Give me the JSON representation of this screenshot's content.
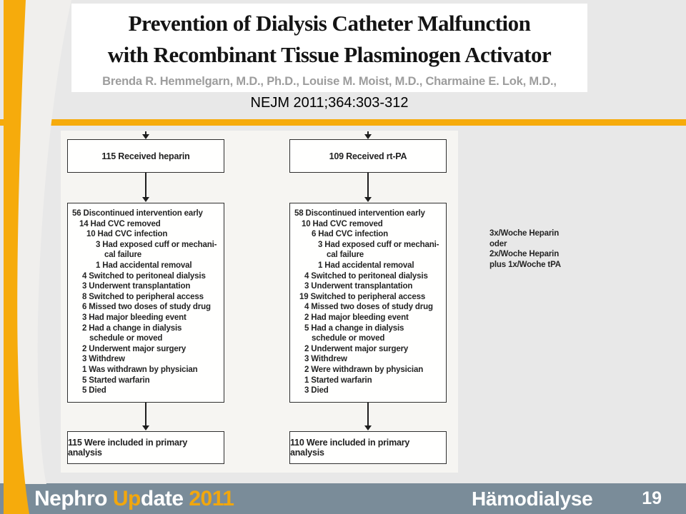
{
  "header": {
    "title_line1": "Prevention of Dialysis Catheter Malfunction",
    "title_line2": "with Recombinant Tissue Plasminogen Activator",
    "authors": "Brenda R. Hemmelgarn, M.D., Ph.D., Louise M. Moist, M.D., Charmaine E. Lok, M.D.,",
    "citation": "NEJM 2011;364:303-312"
  },
  "flowchart": {
    "left_arm": {
      "top_box": "115 Received heparin",
      "detail_box": [
        {
          "text": "56 Discontinued intervention early",
          "indent": 0
        },
        {
          "text": "14 Had CVC removed",
          "indent": 10
        },
        {
          "text": "10 Had CVC infection",
          "indent": 20
        },
        {
          "text": "3 Had exposed cuff or mechani-",
          "indent": 33
        },
        {
          "text": "cal failure",
          "indent": 45
        },
        {
          "text": "1 Had accidental removal",
          "indent": 33
        },
        {
          "text": "4 Switched to peritoneal dialysis",
          "indent": 14
        },
        {
          "text": "3 Underwent transplantation",
          "indent": 14
        },
        {
          "text": "8 Switched to peripheral access",
          "indent": 14
        },
        {
          "text": "6 Missed two doses of study drug",
          "indent": 14
        },
        {
          "text": "3 Had major bleeding event",
          "indent": 14
        },
        {
          "text": "2 Had a change in dialysis",
          "indent": 14
        },
        {
          "text": "schedule or moved",
          "indent": 24
        },
        {
          "text": "2 Underwent major surgery",
          "indent": 14
        },
        {
          "text": "3 Withdrew",
          "indent": 14
        },
        {
          "text": "1 Was withdrawn by physician",
          "indent": 14
        },
        {
          "text": "5 Started warfarin",
          "indent": 14
        },
        {
          "text": "5 Died",
          "indent": 14
        }
      ],
      "bottom_box": "115 Were included in primary analysis"
    },
    "right_arm": {
      "top_box": "109 Received rt-PA",
      "detail_box": [
        {
          "text": "58 Discontinued intervention early",
          "indent": 0
        },
        {
          "text": "10 Had CVC removed",
          "indent": 10
        },
        {
          "text": "6 Had CVC infection",
          "indent": 24
        },
        {
          "text": "3 Had exposed cuff or mechani-",
          "indent": 33
        },
        {
          "text": "cal failure",
          "indent": 45
        },
        {
          "text": "1 Had accidental removal",
          "indent": 33
        },
        {
          "text": "4 Switched to peritoneal dialysis",
          "indent": 14
        },
        {
          "text": "3 Underwent transplantation",
          "indent": 14
        },
        {
          "text": "19 Switched to peripheral access",
          "indent": 7
        },
        {
          "text": "4 Missed two doses of study drug",
          "indent": 14
        },
        {
          "text": "2 Had major bleeding event",
          "indent": 14
        },
        {
          "text": "5 Had a change in dialysis",
          "indent": 14
        },
        {
          "text": "schedule or moved",
          "indent": 24
        },
        {
          "text": "2 Underwent major surgery",
          "indent": 14
        },
        {
          "text": "3 Withdrew",
          "indent": 14
        },
        {
          "text": "2 Were withdrawn by physician",
          "indent": 14
        },
        {
          "text": "1 Started warfarin",
          "indent": 14
        },
        {
          "text": "3 Died",
          "indent": 14
        }
      ],
      "bottom_box": "110 Were included in primary analysis"
    }
  },
  "annotation": {
    "lines": [
      {
        "text": "3x/Woche Heparin",
        "indent": 0
      },
      {
        "text": "oder",
        "indent": 0
      },
      {
        "text": "2x/Woche Heparin",
        "indent": 0
      },
      {
        "text": "plus 1x/Woche tPA",
        "indent": 0
      }
    ]
  },
  "footer": {
    "brand": [
      {
        "text": "Nephro ",
        "accent": false
      },
      {
        "text": "Up",
        "accent": true
      },
      {
        "text": "date ",
        "accent": false
      },
      {
        "text": "2011",
        "accent": true
      }
    ],
    "section": "Hämodialyse",
    "page": "19"
  },
  "colors": {
    "accent_orange": "#F6AB0C",
    "footer_gray_blue": "#7A8C99",
    "slide_background": "#E8E8E8",
    "figure_background": "#F6F5F2"
  }
}
